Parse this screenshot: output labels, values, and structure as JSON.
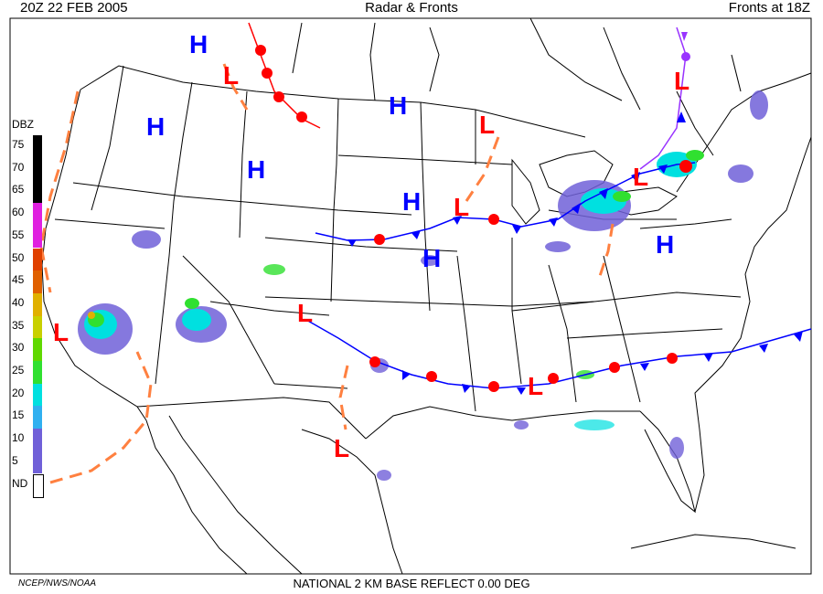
{
  "header": {
    "left": "20Z  22 FEB  2005",
    "center": "Radar & Fronts",
    "right": "Fronts at 18Z"
  },
  "footer": {
    "credit": "NCEP/NWS/NOAA",
    "product": "NATIONAL 2 KM BASE REFLECT 0.00 DEG"
  },
  "legend": {
    "title": "DBZ",
    "levels": [
      {
        "label": "75",
        "color": "#000000"
      },
      {
        "label": "70",
        "color": "#000000"
      },
      {
        "label": "65",
        "color": "#000000"
      },
      {
        "label": "60",
        "color": "#e020e0"
      },
      {
        "label": "55",
        "color": "#e020e0"
      },
      {
        "label": "50",
        "color": "#e04000"
      },
      {
        "label": "45",
        "color": "#e06000"
      },
      {
        "label": "40",
        "color": "#e0b000"
      },
      {
        "label": "35",
        "color": "#c8d000"
      },
      {
        "label": "30",
        "color": "#60d800"
      },
      {
        "label": "25",
        "color": "#30e030"
      },
      {
        "label": "20",
        "color": "#00e0e0"
      },
      {
        "label": "15",
        "color": "#30b0f0"
      },
      {
        "label": "10",
        "color": "#7060d8"
      },
      {
        "label": "5",
        "color": "#7060d8"
      },
      {
        "label": "ND",
        "color": "#ffffff"
      }
    ]
  },
  "pressure_centers": {
    "high": {
      "label": "H",
      "color": "#0000ff"
    },
    "low": {
      "label": "L",
      "color": "#ff0000"
    }
  },
  "colors": {
    "cold_front": "#0000ff",
    "warm_front": "#ff0000",
    "trough": "#ff8040",
    "occluded": "#9933ff"
  }
}
